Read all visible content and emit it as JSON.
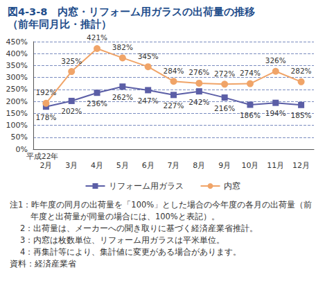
{
  "chart_data": {
    "type": "line",
    "title": "図4-3-8　内窓・リフォーム用ガラスの出荷量の推移",
    "subtitle": "（前年同月比・推計）",
    "annotations": [
      "平成22年"
    ],
    "categories": [
      "2月",
      "3月",
      "4月",
      "5月",
      "6月",
      "7月",
      "8月",
      "9月",
      "10月",
      "11月",
      "12月"
    ],
    "series": [
      {
        "name": "リフォーム用ガラス",
        "color": "#5b5ea6",
        "marker": "square",
        "line_style": "solid",
        "values": [
          178,
          202,
          236,
          262,
          247,
          227,
          242,
          216,
          186,
          194,
          185
        ],
        "value_labels": [
          "178%",
          "202%",
          "236%",
          "262%",
          "247%",
          "227%",
          "242%",
          "216%",
          "186%",
          "194%",
          "185%"
        ]
      },
      {
        "name": "内窓",
        "color": "#f0a468",
        "marker": "circle",
        "line_style": "solid",
        "values": [
          192,
          325,
          421,
          382,
          345,
          284,
          276,
          272,
          274,
          326,
          282
        ],
        "value_labels": [
          "192%",
          "325%",
          "421%",
          "382%",
          "345%",
          "284%",
          "276%",
          "272%",
          "274%",
          "326%",
          "282%"
        ]
      }
    ],
    "ylim": [
      0,
      450
    ],
    "yticks": [
      {
        "value": 0,
        "label": "0%"
      },
      {
        "value": 50,
        "label": "50%"
      },
      {
        "value": 100,
        "label": "100%"
      },
      {
        "value": 150,
        "label": "150%"
      },
      {
        "value": 200,
        "label": "200%"
      },
      {
        "value": 250,
        "label": "250%"
      },
      {
        "value": 300,
        "label": "300%"
      },
      {
        "value": 350,
        "label": "350%"
      },
      {
        "value": 400,
        "label": "400%"
      },
      {
        "value": 450,
        "label": "450%"
      }
    ],
    "grid": true,
    "legend": "bottom",
    "data_labels": true,
    "notes": [
      "注1：昨年度の同月の出荷量を「100%」とした場合の今年度の各月の出荷量（前年度と出荷量が同量の場合には、100%と表記）。",
      "2：出荷量は、メーカーへの聞き取りに基づく経済産業省推計。",
      "3：内窓は枚数単位、リフォーム用ガラスは平米単位。",
      "4：再集計等により、集計値に変更がある場合があります。",
      "資料：経済産業省"
    ]
  }
}
